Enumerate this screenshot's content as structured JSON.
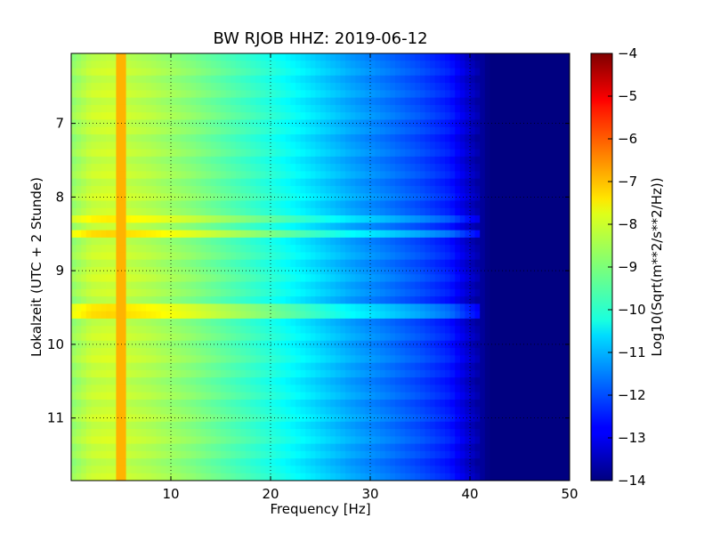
{
  "chart_data": {
    "type": "heatmap",
    "title": "BW RJOB HHZ: 2019-06-12",
    "xlabel": "Frequency [Hz]",
    "ylabel": "Lokalzeit (UTC + 2 Stunde)",
    "colorbar_label": "Log10(Sqrt(m**2/s**2/Hz))",
    "xlim": [
      0,
      50
    ],
    "ylim": [
      11.85,
      6.05
    ],
    "y_inverted": true,
    "x_ticks": [
      10,
      20,
      30,
      40,
      50
    ],
    "x_tick_labels": [
      "10",
      "20",
      "30",
      "40",
      "50"
    ],
    "y_ticks": [
      7,
      8,
      9,
      10,
      11
    ],
    "y_tick_labels": [
      "7",
      "8",
      "9",
      "10",
      "11"
    ],
    "colorbar_range": [
      -14,
      -4
    ],
    "colorbar_ticks": [
      -4,
      -5,
      -6,
      -7,
      -8,
      -9,
      -10,
      -11,
      -12,
      -13,
      -14
    ],
    "colorbar_tick_labels": [
      "−4",
      "−5",
      "−6",
      "−7",
      "−8",
      "−9",
      "−10",
      "−11",
      "−12",
      "−13",
      "−14"
    ],
    "colormap": "jet",
    "grid": true,
    "spectrum_profile": {
      "frequency_hz": [
        0,
        2,
        4,
        8,
        12,
        16,
        20,
        24,
        28,
        32,
        35,
        38,
        40,
        42,
        50
      ],
      "log10_amplitude": [
        -8.8,
        -8.3,
        -8.2,
        -8.5,
        -8.9,
        -9.4,
        -9.9,
        -10.5,
        -11.1,
        -11.6,
        -12.0,
        -12.5,
        -13.3,
        -14.0,
        -14.0
      ]
    },
    "narrowband_line": {
      "frequency_hz": 5,
      "log10_amplitude": -7.0
    },
    "transient_bands_time": [
      8.28,
      8.5,
      9.55
    ]
  }
}
